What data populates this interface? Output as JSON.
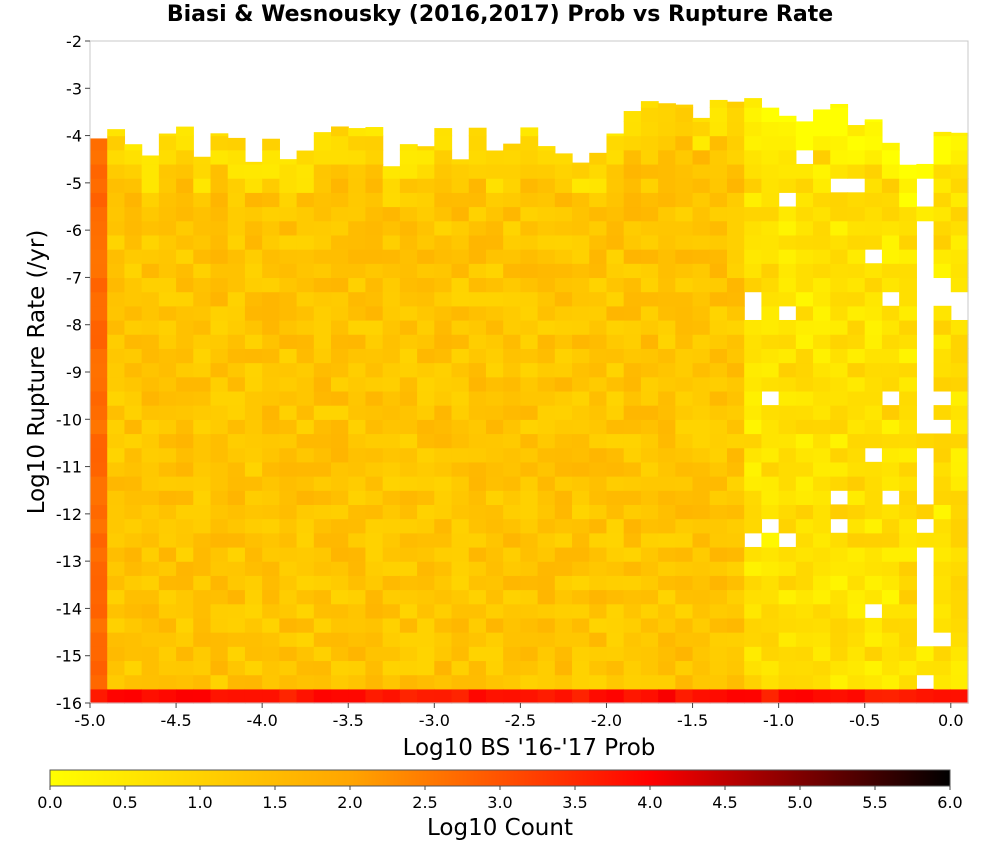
{
  "chart_data": {
    "type": "heatmap",
    "title": "Biasi & Wesnousky (2016,2017) Prob vs Rupture Rate",
    "xlabel": "Log10 BS '16-'17 Prob",
    "ylabel": "Log10 Rupture Rate (/yr)",
    "xlim": [
      -5.0,
      0.1
    ],
    "ylim": [
      -16.0,
      -2.0
    ],
    "x_ticks": [
      "-5.0",
      "-4.5",
      "-4.0",
      "-3.5",
      "-3.0",
      "-2.5",
      "-2.0",
      "-1.5",
      "-1.0",
      "-0.5",
      "0.0"
    ],
    "y_ticks": [
      "-2",
      "-3",
      "-4",
      "-5",
      "-6",
      "-7",
      "-8",
      "-9",
      "-10",
      "-11",
      "-12",
      "-13",
      "-14",
      "-15",
      "-16"
    ],
    "bin_width_x": 0.1,
    "bin_width_y": 0.3,
    "colorbar": {
      "label": "Log10 Count",
      "range": [
        0.0,
        6.0
      ],
      "ticks": [
        "0.0",
        "0.5",
        "1.0",
        "1.5",
        "2.0",
        "2.5",
        "3.0",
        "3.5",
        "4.0",
        "4.5",
        "5.0",
        "5.5",
        "6.0"
      ],
      "colors": [
        "#ffff00",
        "#ffa500",
        "#ff0000",
        "#000000"
      ]
    },
    "bottom_row_log10_count": 3.8,
    "left_column_log10_count": 2.7,
    "typical_interior_log10_count": 1.3,
    "populated_region": "x from -5.0 to 0.1, y from about -4 to -16"
  }
}
